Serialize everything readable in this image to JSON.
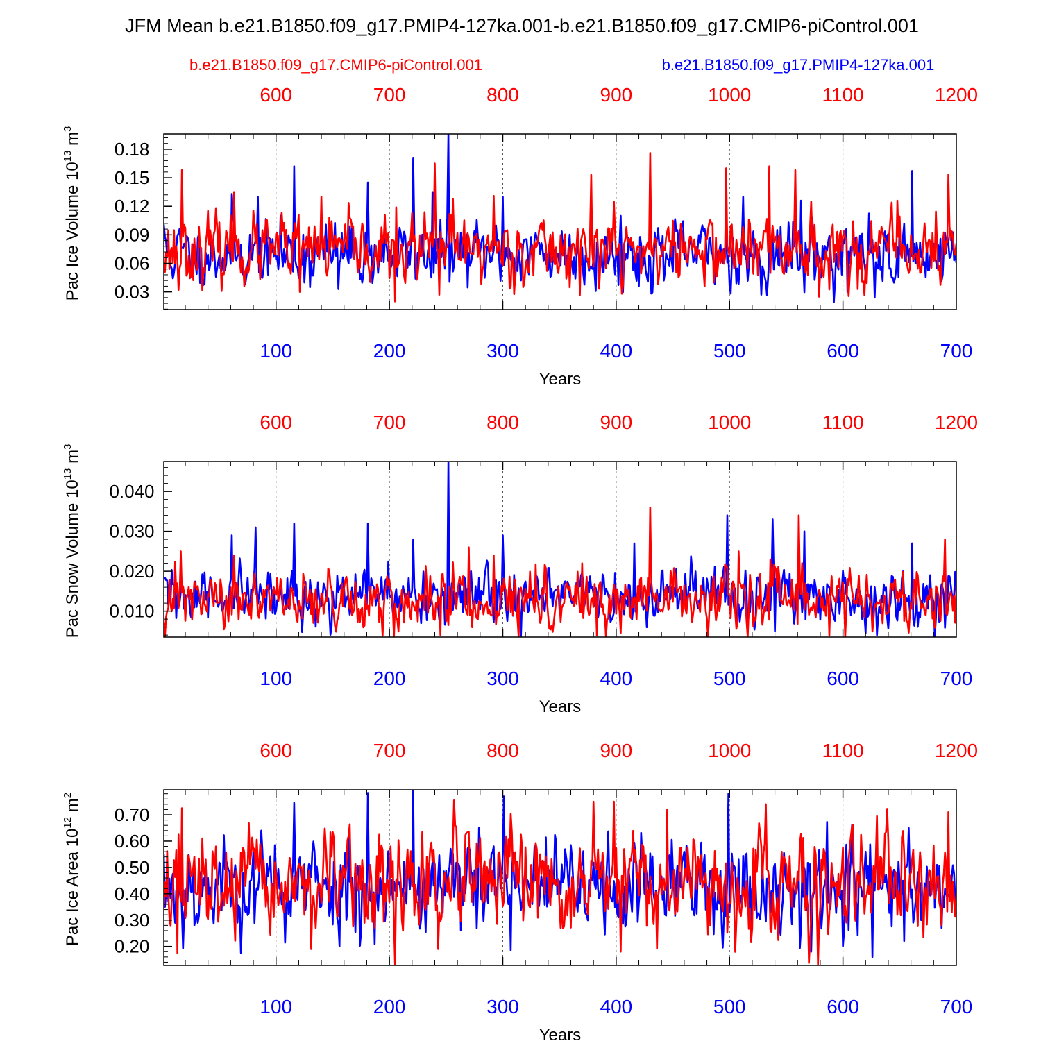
{
  "title": "JFM Mean b.e21.B1850.f09_g17.PMIP4-127ka.001-b.e21.B1850.f09_g17.CMIP6-piControl.001",
  "legend": {
    "red_label": "b.e21.B1850.f09_g17.CMIP6-piControl.001",
    "blue_label": "b.e21.B1850.f09_g17.PMIP4-127ka.001"
  },
  "colors": {
    "red": "#ff0000",
    "blue": "#0000ff",
    "axis": "#000000",
    "grid": "#555555"
  },
  "chart_data": [
    {
      "type": "line",
      "ylabel_main": "Pac Ice Volume 10",
      "ylabel_sup": "13",
      "ylabel_unit": " m",
      "ylabel_unit_sup": "3",
      "xlabel": "Years",
      "xlim": [
        1,
        700
      ],
      "ylim": [
        0.0115,
        0.196
      ],
      "yticks": [
        0.03,
        0.06,
        0.09,
        0.12,
        0.15,
        0.18
      ],
      "ytick_labels": [
        "0.03",
        "0.06",
        "0.09",
        "0.12",
        "0.15",
        "0.18"
      ],
      "yminor_step": 0.006,
      "xticks_bottom": [
        100,
        200,
        300,
        400,
        500,
        600,
        700
      ],
      "xtick_labels_bottom": [
        "100",
        "200",
        "300",
        "400",
        "500",
        "600",
        "700"
      ],
      "xtick_labels_top": [
        "600",
        "700",
        "800",
        "900",
        "1000",
        "1100",
        "1200"
      ],
      "series": [
        {
          "name": "b.e21.B1850.f09_g17.PMIP4-127ka.001",
          "color": "blue",
          "x_range": [
            1,
            700
          ],
          "base": 0.07,
          "amp": 0.016,
          "seed": 11,
          "peaks": [
            [
              1,
              0.101
            ],
            [
              61,
              0.133
            ],
            [
              84,
              0.13
            ],
            [
              116,
              0.162
            ],
            [
              181,
              0.145
            ],
            [
              221,
              0.171
            ],
            [
              238,
              0.135
            ],
            [
              252,
              0.196
            ],
            [
              300,
              0.13
            ],
            [
              404,
              0.11
            ],
            [
              512,
              0.13
            ],
            [
              563,
              0.126
            ],
            [
              661,
              0.157
            ]
          ],
          "dips": [
            [
              130,
              0.035
            ],
            [
              155,
              0.033
            ],
            [
              420,
              0.036
            ],
            [
              528,
              0.027
            ],
            [
              604,
              0.03
            ],
            [
              628,
              0.024
            ]
          ]
        },
        {
          "name": "b.e21.B1850.f09_g17.CMIP6-piControl.001",
          "color": "red",
          "x_range": [
            1,
            700
          ],
          "base": 0.074,
          "amp": 0.017,
          "seed": 23,
          "peaks": [
            [
              17,
              0.158
            ],
            [
              63,
              0.135
            ],
            [
              140,
              0.13
            ],
            [
              240,
              0.165
            ],
            [
              256,
              0.128
            ],
            [
              292,
              0.131
            ],
            [
              378,
              0.153
            ],
            [
              398,
              0.125
            ],
            [
              430,
              0.176
            ],
            [
              497,
              0.16
            ],
            [
              535,
              0.162
            ],
            [
              558,
              0.158
            ],
            [
              572,
              0.125
            ],
            [
              648,
              0.126
            ],
            [
              693,
              0.153
            ]
          ],
          "dips": [
            [
              14,
              0.032
            ],
            [
              121,
              0.03
            ],
            [
              205,
              0.02
            ],
            [
              244,
              0.027
            ],
            [
              405,
              0.028
            ],
            [
              613,
              0.033
            ]
          ]
        }
      ]
    },
    {
      "type": "line",
      "ylabel_main": "Pac Snow Volume 10",
      "ylabel_sup": "13",
      "ylabel_unit": " m",
      "ylabel_unit_sup": "3",
      "xlabel": "Years",
      "xlim": [
        1,
        700
      ],
      "ylim": [
        0.0035,
        0.0475
      ],
      "yticks": [
        0.01,
        0.02,
        0.03,
        0.04
      ],
      "ytick_labels": [
        "0.010",
        "0.020",
        "0.030",
        "0.040"
      ],
      "yminor_step": 0.002,
      "xticks_bottom": [
        100,
        200,
        300,
        400,
        500,
        600,
        700
      ],
      "xtick_labels_bottom": [
        "100",
        "200",
        "300",
        "400",
        "500",
        "600",
        "700"
      ],
      "xtick_labels_top": [
        "600",
        "700",
        "800",
        "900",
        "1000",
        "1100",
        "1200"
      ],
      "series": [
        {
          "name": "b.e21.B1850.f09_g17.PMIP4-127ka.001",
          "color": "blue",
          "x_range": [
            1,
            700
          ],
          "base": 0.0135,
          "amp": 0.0035,
          "seed": 31,
          "peaks": [
            [
              61,
              0.029
            ],
            [
              82,
              0.031
            ],
            [
              116,
              0.032
            ],
            [
              181,
              0.032
            ],
            [
              221,
              0.028
            ],
            [
              252,
              0.0475
            ],
            [
              300,
              0.029
            ],
            [
              416,
              0.027
            ],
            [
              498,
              0.034
            ],
            [
              538,
              0.033
            ],
            [
              566,
              0.03
            ],
            [
              661,
              0.027
            ]
          ],
          "dips": [
            [
              540,
              0.005
            ],
            [
              630,
              0.004
            ]
          ]
        },
        {
          "name": "b.e21.B1850.f09_g17.CMIP6-piControl.001",
          "color": "red",
          "x_range": [
            1,
            700
          ],
          "base": 0.0125,
          "amp": 0.0035,
          "seed": 47,
          "peaks": [
            [
              16,
              0.025
            ],
            [
              63,
              0.024
            ],
            [
              270,
              0.026
            ],
            [
              292,
              0.024
            ],
            [
              370,
              0.022
            ],
            [
              430,
              0.036
            ],
            [
              508,
              0.025
            ],
            [
              536,
              0.023
            ],
            [
              561,
              0.034
            ],
            [
              690,
              0.028
            ]
          ],
          "dips": [
            [
              204,
              0.0035
            ],
            [
              245,
              0.004
            ],
            [
              404,
              0.0045
            ]
          ]
        }
      ]
    },
    {
      "type": "line",
      "ylabel_main": "Pac Ice Area 10",
      "ylabel_sup": "12",
      "ylabel_unit": " m",
      "ylabel_unit_sup": "2",
      "xlabel": "Years",
      "xlim": [
        1,
        700
      ],
      "ylim": [
        0.128,
        0.795
      ],
      "yticks": [
        0.2,
        0.3,
        0.4,
        0.5,
        0.6,
        0.7
      ],
      "ytick_labels": [
        "0.20",
        "0.30",
        "0.40",
        "0.50",
        "0.60",
        "0.70"
      ],
      "yminor_step": 0.02,
      "xticks_bottom": [
        100,
        200,
        300,
        400,
        500,
        600,
        700
      ],
      "xtick_labels_bottom": [
        "100",
        "200",
        "300",
        "400",
        "500",
        "600",
        "700"
      ],
      "xtick_labels_top": [
        "600",
        "700",
        "800",
        "900",
        "1000",
        "1100",
        "1200"
      ],
      "series": [
        {
          "name": "b.e21.B1850.f09_g17.PMIP4-127ka.001",
          "color": "blue",
          "x_range": [
            1,
            700
          ],
          "base": 0.43,
          "amp": 0.09,
          "seed": 53,
          "peaks": [
            [
              116,
              0.745
            ],
            [
              181,
              0.783
            ],
            [
              221,
              0.795
            ],
            [
              301,
              0.77
            ],
            [
              499,
              0.78
            ]
          ],
          "dips": [
            [
              307,
              0.185
            ],
            [
              626,
              0.16
            ],
            [
              572,
              0.18
            ]
          ]
        },
        {
          "name": "b.e21.B1850.f09_g17.CMIP6-piControl.001",
          "color": "red",
          "x_range": [
            1,
            700
          ],
          "base": 0.43,
          "amp": 0.09,
          "seed": 67,
          "peaks": [
            [
              17,
              0.725
            ],
            [
              257,
              0.755
            ],
            [
              380,
              0.75
            ],
            [
              398,
              0.75
            ],
            [
              532,
              0.74
            ],
            [
              693,
              0.71
            ]
          ],
          "dips": [
            [
              13,
              0.175
            ],
            [
              205,
              0.128
            ],
            [
              243,
              0.19
            ],
            [
              404,
              0.18
            ]
          ]
        }
      ]
    }
  ]
}
